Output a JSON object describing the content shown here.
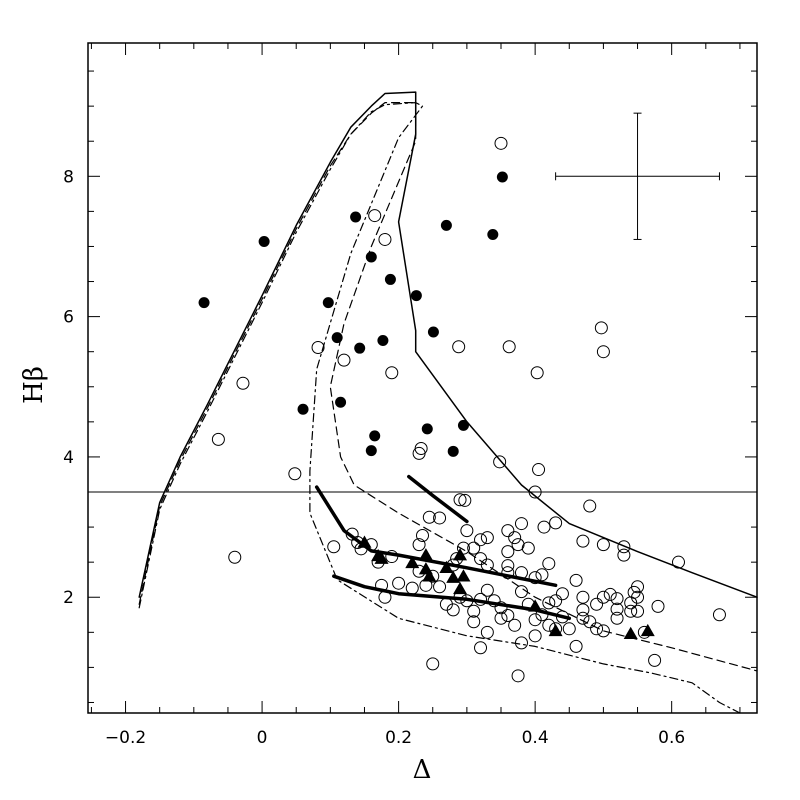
{
  "chart_data": {
    "type": "scatter",
    "title": "",
    "xlabel": "Δ",
    "ylabel": "Hβ",
    "xlim": [
      -0.255,
      0.725
    ],
    "ylim": [
      0.35,
      9.9
    ],
    "xticks": [
      -0.2,
      0,
      0.2,
      0.4,
      0.6
    ],
    "xtick_labels": [
      "−0.2",
      "0",
      "0.2",
      "0.4",
      "0.6"
    ],
    "yticks": [
      2,
      4,
      6,
      8
    ],
    "ytick_labels": [
      "2",
      "4",
      "6",
      "8"
    ],
    "grid": false,
    "reference_line_y": 3.5,
    "error_bar": {
      "x": 0.55,
      "y": 8.0,
      "xerr": 0.12,
      "yerr": 0.9
    },
    "series": [
      {
        "marker": "filled-circle",
        "values": [
          [
            -0.085,
            6.2
          ],
          [
            0.003,
            7.07
          ],
          [
            0.097,
            6.2
          ],
          [
            0.137,
            7.42
          ],
          [
            0.11,
            5.7
          ],
          [
            0.06,
            4.68
          ],
          [
            0.115,
            4.78
          ],
          [
            0.143,
            5.55
          ],
          [
            0.16,
            6.85
          ],
          [
            0.188,
            6.53
          ],
          [
            0.177,
            5.66
          ],
          [
            0.165,
            4.3
          ],
          [
            0.16,
            4.09
          ],
          [
            0.226,
            6.3
          ],
          [
            0.251,
            5.78
          ],
          [
            0.242,
            4.4
          ],
          [
            0.27,
            7.3
          ],
          [
            0.295,
            4.45
          ],
          [
            0.28,
            4.08
          ],
          [
            0.338,
            7.17
          ],
          [
            0.352,
            7.99
          ]
        ]
      },
      {
        "marker": "open-circle",
        "values": [
          [
            -0.064,
            4.25
          ],
          [
            -0.028,
            5.05
          ],
          [
            -0.04,
            2.57
          ],
          [
            0.048,
            3.76
          ],
          [
            0.082,
            5.56
          ],
          [
            0.12,
            5.38
          ],
          [
            0.165,
            7.44
          ],
          [
            0.18,
            7.1
          ],
          [
            0.19,
            5.2
          ],
          [
            0.23,
            4.05
          ],
          [
            0.233,
            4.12
          ],
          [
            0.288,
            5.57
          ],
          [
            0.35,
            8.47
          ],
          [
            0.362,
            5.57
          ],
          [
            0.403,
            5.2
          ],
          [
            0.348,
            3.93
          ],
          [
            0.405,
            3.82
          ],
          [
            0.497,
            5.84
          ],
          [
            0.5,
            5.5
          ],
          [
            0.29,
            3.39
          ],
          [
            0.297,
            3.38
          ],
          [
            0.4,
            3.5
          ],
          [
            0.14,
            2.78
          ],
          [
            0.145,
            2.69
          ],
          [
            0.16,
            2.75
          ],
          [
            0.17,
            2.5
          ],
          [
            0.132,
            2.9
          ],
          [
            0.105,
            2.72
          ],
          [
            0.23,
            2.75
          ],
          [
            0.245,
            3.14
          ],
          [
            0.26,
            3.13
          ],
          [
            0.235,
            2.88
          ],
          [
            0.28,
            2.46
          ],
          [
            0.285,
            2.55
          ],
          [
            0.295,
            2.7
          ],
          [
            0.31,
            2.7
          ],
          [
            0.32,
            2.55
          ],
          [
            0.33,
            2.46
          ],
          [
            0.3,
            2.95
          ],
          [
            0.32,
            2.82
          ],
          [
            0.33,
            2.85
          ],
          [
            0.36,
            2.95
          ],
          [
            0.37,
            2.85
          ],
          [
            0.375,
            2.75
          ],
          [
            0.38,
            3.05
          ],
          [
            0.39,
            2.7
          ],
          [
            0.36,
            2.65
          ],
          [
            0.36,
            2.45
          ],
          [
            0.38,
            2.35
          ],
          [
            0.4,
            2.28
          ],
          [
            0.41,
            2.32
          ],
          [
            0.42,
            2.48
          ],
          [
            0.43,
            3.06
          ],
          [
            0.413,
            3.0
          ],
          [
            0.47,
            2.8
          ],
          [
            0.48,
            3.3
          ],
          [
            0.5,
            2.75
          ],
          [
            0.53,
            2.72
          ],
          [
            0.53,
            2.6
          ],
          [
            0.55,
            2.15
          ],
          [
            0.61,
            2.5
          ],
          [
            0.67,
            1.75
          ],
          [
            0.58,
            1.87
          ],
          [
            0.55,
            2.0
          ],
          [
            0.54,
            1.8
          ],
          [
            0.52,
            1.98
          ],
          [
            0.51,
            2.04
          ],
          [
            0.5,
            2.0
          ],
          [
            0.49,
            1.9
          ],
          [
            0.48,
            1.65
          ],
          [
            0.47,
            1.82
          ],
          [
            0.46,
            2.24
          ],
          [
            0.47,
            2.0
          ],
          [
            0.46,
            1.3
          ],
          [
            0.44,
            1.72
          ],
          [
            0.43,
            1.95
          ],
          [
            0.42,
            1.92
          ],
          [
            0.41,
            1.75
          ],
          [
            0.4,
            1.68
          ],
          [
            0.38,
            2.08
          ],
          [
            0.37,
            1.6
          ],
          [
            0.36,
            1.74
          ],
          [
            0.35,
            1.85
          ],
          [
            0.34,
            1.95
          ],
          [
            0.33,
            2.1
          ],
          [
            0.32,
            1.97
          ],
          [
            0.31,
            1.8
          ],
          [
            0.3,
            1.95
          ],
          [
            0.29,
            2.0
          ],
          [
            0.28,
            1.82
          ],
          [
            0.27,
            1.9
          ],
          [
            0.26,
            2.15
          ],
          [
            0.25,
            2.3
          ],
          [
            0.24,
            2.17
          ],
          [
            0.23,
            2.37
          ],
          [
            0.22,
            2.13
          ],
          [
            0.2,
            2.2
          ],
          [
            0.18,
            2.0
          ],
          [
            0.19,
            2.58
          ],
          [
            0.175,
            2.17
          ],
          [
            0.25,
            1.05
          ],
          [
            0.375,
            0.88
          ],
          [
            0.32,
            1.28
          ],
          [
            0.35,
            1.7
          ],
          [
            0.4,
            1.45
          ],
          [
            0.45,
            1.55
          ],
          [
            0.5,
            1.52
          ],
          [
            0.52,
            1.7
          ],
          [
            0.55,
            1.8
          ],
          [
            0.56,
            1.5
          ],
          [
            0.575,
            1.1
          ],
          [
            0.49,
            1.55
          ],
          [
            0.43,
            1.55
          ],
          [
            0.42,
            1.6
          ],
          [
            0.38,
            1.35
          ],
          [
            0.33,
            1.5
          ],
          [
            0.31,
            1.65
          ],
          [
            0.52,
            1.83
          ],
          [
            0.54,
            1.92
          ],
          [
            0.545,
            2.07
          ],
          [
            0.47,
            1.7
          ],
          [
            0.44,
            2.05
          ],
          [
            0.39,
            1.9
          ],
          [
            0.36,
            2.35
          ]
        ]
      },
      {
        "marker": "filled-triangle",
        "values": [
          [
            0.15,
            2.78
          ],
          [
            0.17,
            2.59
          ],
          [
            0.175,
            2.55
          ],
          [
            0.22,
            2.49
          ],
          [
            0.24,
            2.6
          ],
          [
            0.24,
            2.4
          ],
          [
            0.245,
            2.3
          ],
          [
            0.27,
            2.42
          ],
          [
            0.29,
            2.6
          ],
          [
            0.28,
            2.28
          ],
          [
            0.29,
            2.12
          ],
          [
            0.295,
            2.3
          ],
          [
            0.4,
            1.87
          ],
          [
            0.43,
            1.52
          ],
          [
            0.54,
            1.48
          ],
          [
            0.565,
            1.52
          ]
        ]
      }
    ],
    "curves": [
      {
        "style": "solid",
        "width": 1.5,
        "points": [
          [
            -0.18,
            2.0
          ],
          [
            -0.15,
            3.35
          ],
          [
            -0.12,
            4.0
          ],
          [
            -0.08,
            4.75
          ],
          [
            0.0,
            6.3
          ],
          [
            0.05,
            7.3
          ],
          [
            0.1,
            8.2
          ],
          [
            0.13,
            8.7
          ],
          [
            0.16,
            9.0
          ],
          [
            0.18,
            9.18
          ],
          [
            0.225,
            9.2
          ],
          [
            0.225,
            8.6
          ],
          [
            0.2,
            7.35
          ],
          [
            0.225,
            5.8
          ],
          [
            0.225,
            5.5
          ],
          [
            0.3,
            4.5
          ],
          [
            0.38,
            3.6
          ],
          [
            0.45,
            3.05
          ],
          [
            0.55,
            2.65
          ],
          [
            0.63,
            2.35
          ],
          [
            0.725,
            2.0
          ]
        ]
      },
      {
        "style": "dashed",
        "width": 1.2,
        "points": [
          [
            -0.18,
            1.9
          ],
          [
            -0.15,
            3.3
          ],
          [
            -0.12,
            3.95
          ],
          [
            -0.08,
            4.7
          ],
          [
            0.0,
            6.25
          ],
          [
            0.05,
            7.25
          ],
          [
            0.1,
            8.15
          ],
          [
            0.13,
            8.6
          ],
          [
            0.16,
            8.9
          ],
          [
            0.18,
            9.05
          ],
          [
            0.225,
            9.05
          ],
          [
            0.225,
            8.5
          ],
          [
            0.16,
            7.0
          ],
          [
            0.12,
            5.9
          ],
          [
            0.1,
            5.0
          ],
          [
            0.115,
            4.0
          ],
          [
            0.135,
            3.6
          ],
          [
            0.2,
            3.2
          ],
          [
            0.3,
            2.65
          ],
          [
            0.4,
            2.0
          ],
          [
            0.5,
            1.52
          ],
          [
            0.6,
            1.28
          ],
          [
            0.725,
            0.95
          ]
        ]
      },
      {
        "style": "dashdot",
        "width": 1.2,
        "points": [
          [
            -0.18,
            1.85
          ],
          [
            -0.15,
            3.25
          ],
          [
            -0.12,
            3.9
          ],
          [
            -0.08,
            4.65
          ],
          [
            0.0,
            6.2
          ],
          [
            0.05,
            7.2
          ],
          [
            0.1,
            8.1
          ],
          [
            0.13,
            8.6
          ],
          [
            0.16,
            8.92
          ],
          [
            0.18,
            9.02
          ],
          [
            0.225,
            9.05
          ],
          [
            0.235,
            9.0
          ],
          [
            0.2,
            8.55
          ],
          [
            0.13,
            6.9
          ],
          [
            0.08,
            5.25
          ],
          [
            0.07,
            3.8
          ],
          [
            0.07,
            3.2
          ],
          [
            0.11,
            2.25
          ],
          [
            0.2,
            1.7
          ],
          [
            0.3,
            1.45
          ],
          [
            0.4,
            1.3
          ],
          [
            0.5,
            1.05
          ],
          [
            0.57,
            0.92
          ],
          [
            0.63,
            0.78
          ],
          [
            0.67,
            0.5
          ],
          [
            0.7,
            0.35
          ]
        ]
      },
      {
        "style": "thick",
        "width": 3.5,
        "points": [
          [
            0.08,
            3.57
          ],
          [
            0.12,
            2.95
          ],
          [
            0.16,
            2.66
          ],
          [
            0.2,
            2.6
          ],
          [
            0.3,
            2.42
          ],
          [
            0.43,
            2.17
          ]
        ]
      },
      {
        "style": "thick",
        "width": 3.5,
        "points": [
          [
            0.105,
            2.3
          ],
          [
            0.15,
            2.15
          ],
          [
            0.2,
            2.05
          ],
          [
            0.3,
            1.97
          ],
          [
            0.4,
            1.82
          ],
          [
            0.45,
            1.7
          ]
        ]
      },
      {
        "style": "thick",
        "width": 3.5,
        "points": [
          [
            0.215,
            3.72
          ],
          [
            0.25,
            3.45
          ],
          [
            0.3,
            3.08
          ]
        ]
      }
    ]
  }
}
